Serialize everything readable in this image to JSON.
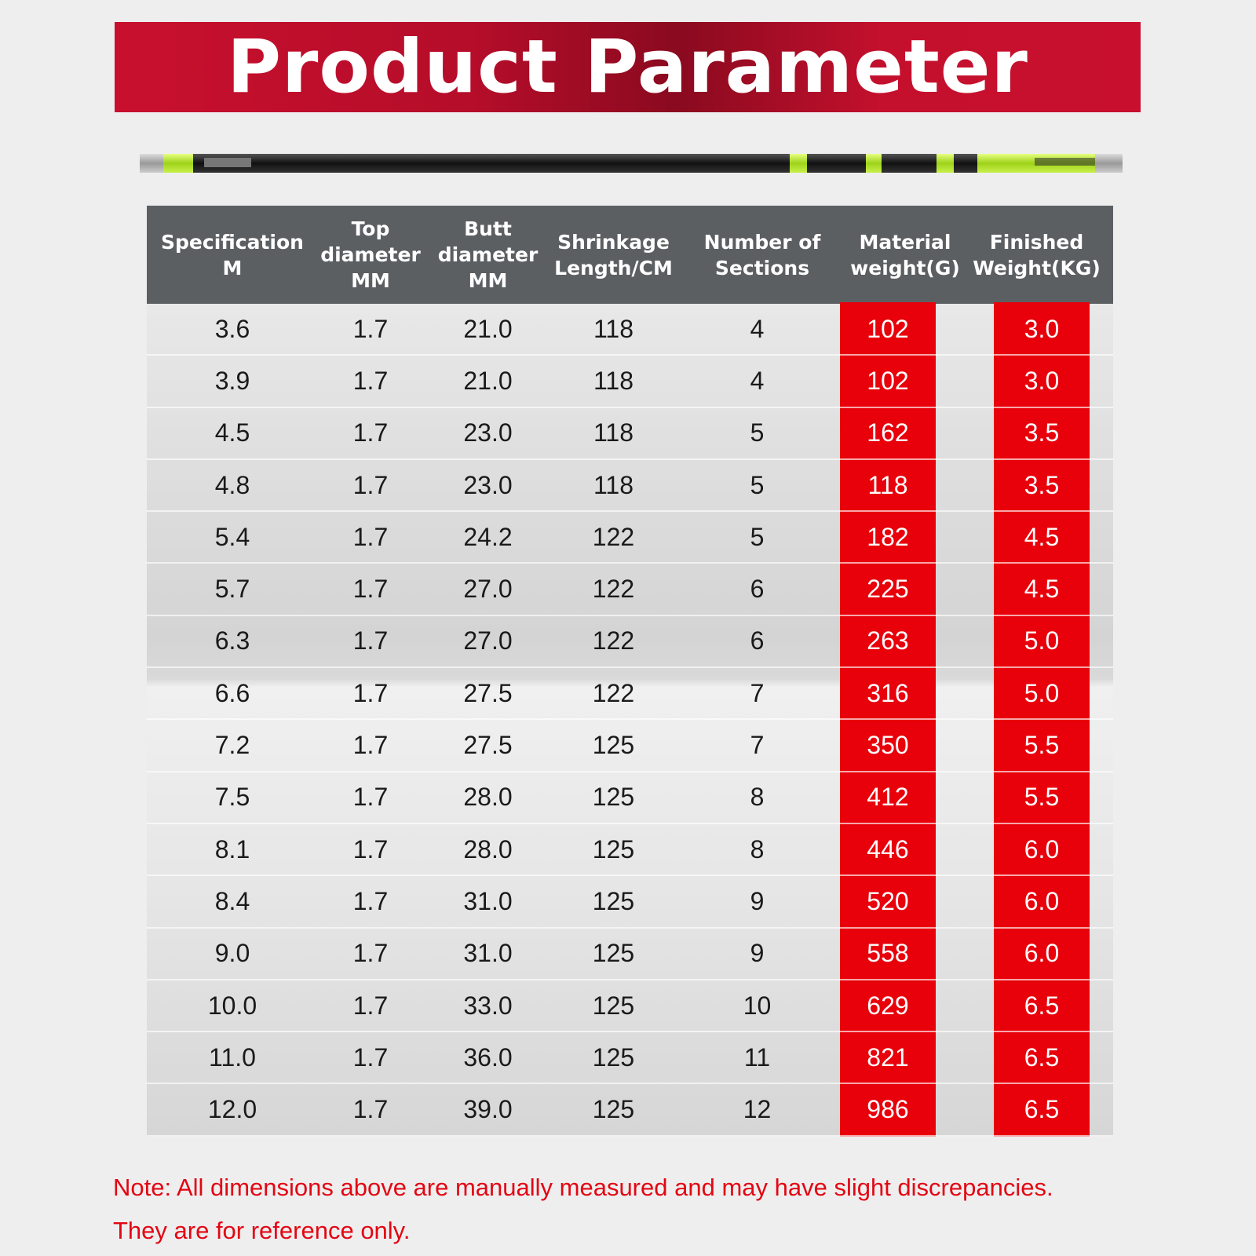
{
  "banner": {
    "title": "Product Parameter"
  },
  "colors": {
    "banner_red": "#c8102e",
    "highlight_red": "#e8000b",
    "header_gray": "#5c5f62",
    "note_red": "#e30613",
    "rod_green": "#b5e61d"
  },
  "rod_image": {
    "icon": "fishing-rod-illustration"
  },
  "table": {
    "headers": [
      "Specification\nM",
      "Top\ndiameter\nMM",
      "Butt\ndiameter\nMM",
      "Shrinkage\nLength/CM",
      "Number of\nSections",
      "Material\nweight(G)",
      "Finished\nWeight(KG)"
    ],
    "rows": [
      [
        "3.6",
        "1.7",
        "21.0",
        "118",
        "4",
        "102",
        "3.0"
      ],
      [
        "3.9",
        "1.7",
        "21.0",
        "118",
        "4",
        "102",
        "3.0"
      ],
      [
        "4.5",
        "1.7",
        "23.0",
        "118",
        "5",
        "162",
        "3.5"
      ],
      [
        "4.8",
        "1.7",
        "23.0",
        "118",
        "5",
        "118",
        "3.5"
      ],
      [
        "5.4",
        "1.7",
        "24.2",
        "122",
        "5",
        "182",
        "4.5"
      ],
      [
        "5.7",
        "1.7",
        "27.0",
        "122",
        "6",
        "225",
        "4.5"
      ],
      [
        "6.3",
        "1.7",
        "27.0",
        "122",
        "6",
        "263",
        "5.0"
      ],
      [
        "6.6",
        "1.7",
        "27.5",
        "122",
        "7",
        "316",
        "5.0"
      ],
      [
        "7.2",
        "1.7",
        "27.5",
        "125",
        "7",
        "350",
        "5.5"
      ],
      [
        "7.5",
        "1.7",
        "28.0",
        "125",
        "8",
        "412",
        "5.5"
      ],
      [
        "8.1",
        "1.7",
        "28.0",
        "125",
        "8",
        "446",
        "6.0"
      ],
      [
        "8.4",
        "1.7",
        "31.0",
        "125",
        "9",
        "520",
        "6.0"
      ],
      [
        "9.0",
        "1.7",
        "31.0",
        "125",
        "9",
        "558",
        "6.0"
      ],
      [
        "10.0",
        "1.7",
        "33.0",
        "125",
        "10",
        "629",
        "6.5"
      ],
      [
        "11.0",
        "1.7",
        "36.0",
        "125",
        "11",
        "821",
        "6.5"
      ],
      [
        "12.0",
        "1.7",
        "39.0",
        "125",
        "12",
        "986",
        "6.5"
      ]
    ]
  },
  "note": {
    "line1": "Note: All dimensions above are manually measured and may have slight discrepancies.",
    "line2": "They are for reference only."
  }
}
